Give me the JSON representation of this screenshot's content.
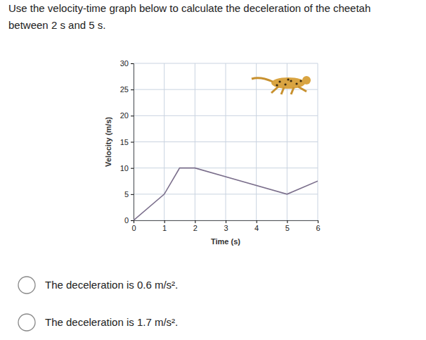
{
  "question": [
    "Use the velocity-time graph below to calculate the deceleration of the cheetah",
    "between 2 s and 5 s."
  ],
  "options": [
    "The deceleration is 0.6 m/s².",
    "The deceleration is 1.7 m/s²."
  ],
  "chart_data": {
    "type": "line",
    "xlabel": "Time (s)",
    "ylabel": "Velocity (m/s)",
    "x": [
      0,
      1,
      1.5,
      2,
      5,
      6
    ],
    "series": [
      {
        "name": "cheetah",
        "color": "#7b6f8c",
        "values": [
          0,
          5,
          10,
          10,
          5,
          7.5
        ]
      }
    ],
    "xlim": [
      0,
      6
    ],
    "xticks": [
      0,
      1,
      2,
      3,
      4,
      5,
      6
    ],
    "ylim": [
      0,
      30
    ],
    "yticks": [
      0,
      5,
      10,
      15,
      20,
      25,
      30
    ],
    "grid": true
  }
}
